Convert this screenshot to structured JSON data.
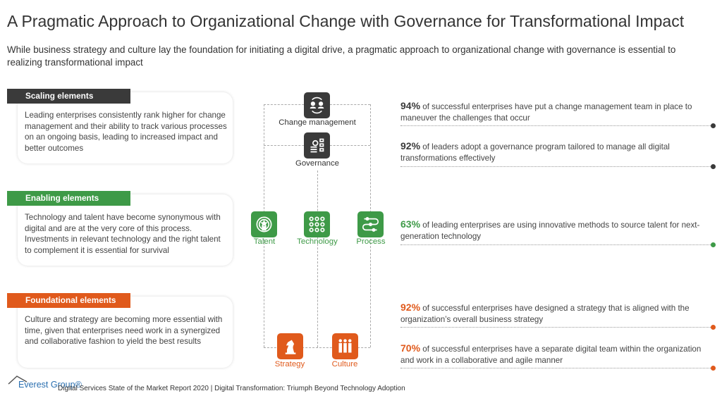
{
  "title": "A Pragmatic Approach to Organizational Change with Governance for Transformational Impact",
  "subtitle": "While business strategy and culture lay the foundation for initiating a digital drive, a pragmatic approach to organizational change with governance is essential to realizing transformational impact",
  "colors": {
    "dark": "#3a3a3a",
    "green": "#3e9a47",
    "orange": "#e05a1c"
  },
  "elements": [
    {
      "label": "Scaling elements",
      "text": "Leading enterprises consistently rank higher for change management and their ability to track various processes on an ongoing basis, leading to increased impact and better outcomes"
    },
    {
      "label": "Enabling elements",
      "text": "Technology and talent have become synonymous with digital and are at the very core of this process. Investments in relevant technology and the right talent to complement it is essential for survival"
    },
    {
      "label": "Foundational elements",
      "text": "Culture and strategy are becoming more essential with time, given that enterprises need work in a synergized and collaborative fashion to yield the best results"
    }
  ],
  "diagram": {
    "change_management": "Change management",
    "governance": "Governance",
    "talent": "Talent",
    "technology": "Technology",
    "process": "Process",
    "strategy": "Strategy",
    "culture": "Culture"
  },
  "stats": [
    {
      "value": "94%",
      "text": " of successful enterprises have put a change management team in place to maneuver the challenges that occur"
    },
    {
      "value": "92%",
      "text": " of leaders adopt a governance program tailored to manage all digital transformations effectively"
    },
    {
      "value": "63%",
      "text": " of leading enterprises are using innovative methods to source talent for next-generation technology"
    },
    {
      "value": "92%",
      "text": " of successful enterprises have designed a strategy that is aligned with the organization’s overall business strategy"
    },
    {
      "value": "70%",
      "text": " of successful enterprises have a separate digital team within the organization and work in a collaborative and agile manner"
    }
  ],
  "footer": {
    "logo": "Everest Group®",
    "text": "Digital Services State of the Market Report 2020 | Digital Transformation: Triumph Beyond Technology Adoption"
  }
}
